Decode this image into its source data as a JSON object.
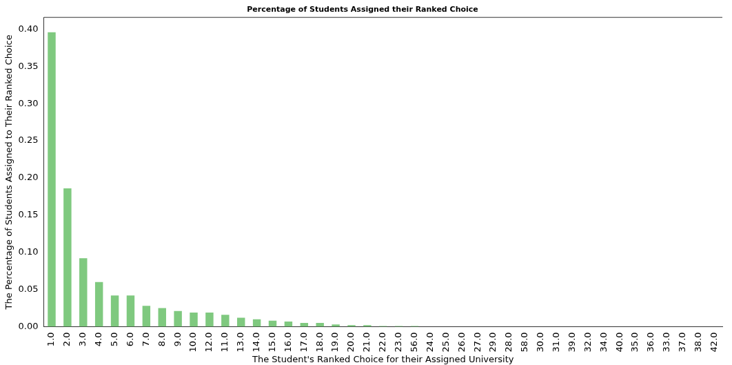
{
  "chart_data": {
    "type": "bar",
    "title": "Percentage of Students Assigned their Ranked Choice",
    "xlabel": "The Student's Ranked Choice for their Assigned University",
    "ylabel": "The Percentage of Students Assigned to Their Ranked Choice",
    "categories": [
      "1.0",
      "2.0",
      "3.0",
      "4.0",
      "5.0",
      "6.0",
      "7.0",
      "8.0",
      "9.0",
      "10.0",
      "12.0",
      "11.0",
      "13.0",
      "14.0",
      "15.0",
      "16.0",
      "17.0",
      "18.0",
      "19.0",
      "20.0",
      "21.0",
      "22.0",
      "23.0",
      "56.0",
      "24.0",
      "25.0",
      "26.0",
      "27.0",
      "29.0",
      "28.0",
      "58.0",
      "30.0",
      "31.0",
      "39.0",
      "32.0",
      "34.0",
      "40.0",
      "35.0",
      "36.0",
      "33.0",
      "37.0",
      "38.0",
      "42.0"
    ],
    "values": [
      0.396,
      0.186,
      0.092,
      0.06,
      0.042,
      0.042,
      0.028,
      0.025,
      0.021,
      0.019,
      0.019,
      0.016,
      0.012,
      0.01,
      0.008,
      0.007,
      0.005,
      0.005,
      0.003,
      0.002,
      0.002,
      0.001,
      0.001,
      0.001,
      0,
      0,
      0,
      0,
      0,
      0,
      0,
      0,
      0,
      0,
      0,
      0,
      0,
      0,
      0,
      0,
      0,
      0,
      0
    ],
    "color": "#7fc97f",
    "ylim": [
      0,
      0.416
    ],
    "yticks": [
      {
        "value": 0,
        "label": "0.00"
      },
      {
        "value": 0.05,
        "label": "0.05"
      },
      {
        "value": 0.1,
        "label": "0.10"
      },
      {
        "value": 0.15,
        "label": "0.15"
      },
      {
        "value": 0.2,
        "label": "0.20"
      },
      {
        "value": 0.25,
        "label": "0.25"
      },
      {
        "value": 0.3,
        "label": "0.30"
      },
      {
        "value": 0.35,
        "label": "0.35"
      },
      {
        "value": 0.4,
        "label": "0.40"
      }
    ],
    "grid": false,
    "legend": false
  }
}
